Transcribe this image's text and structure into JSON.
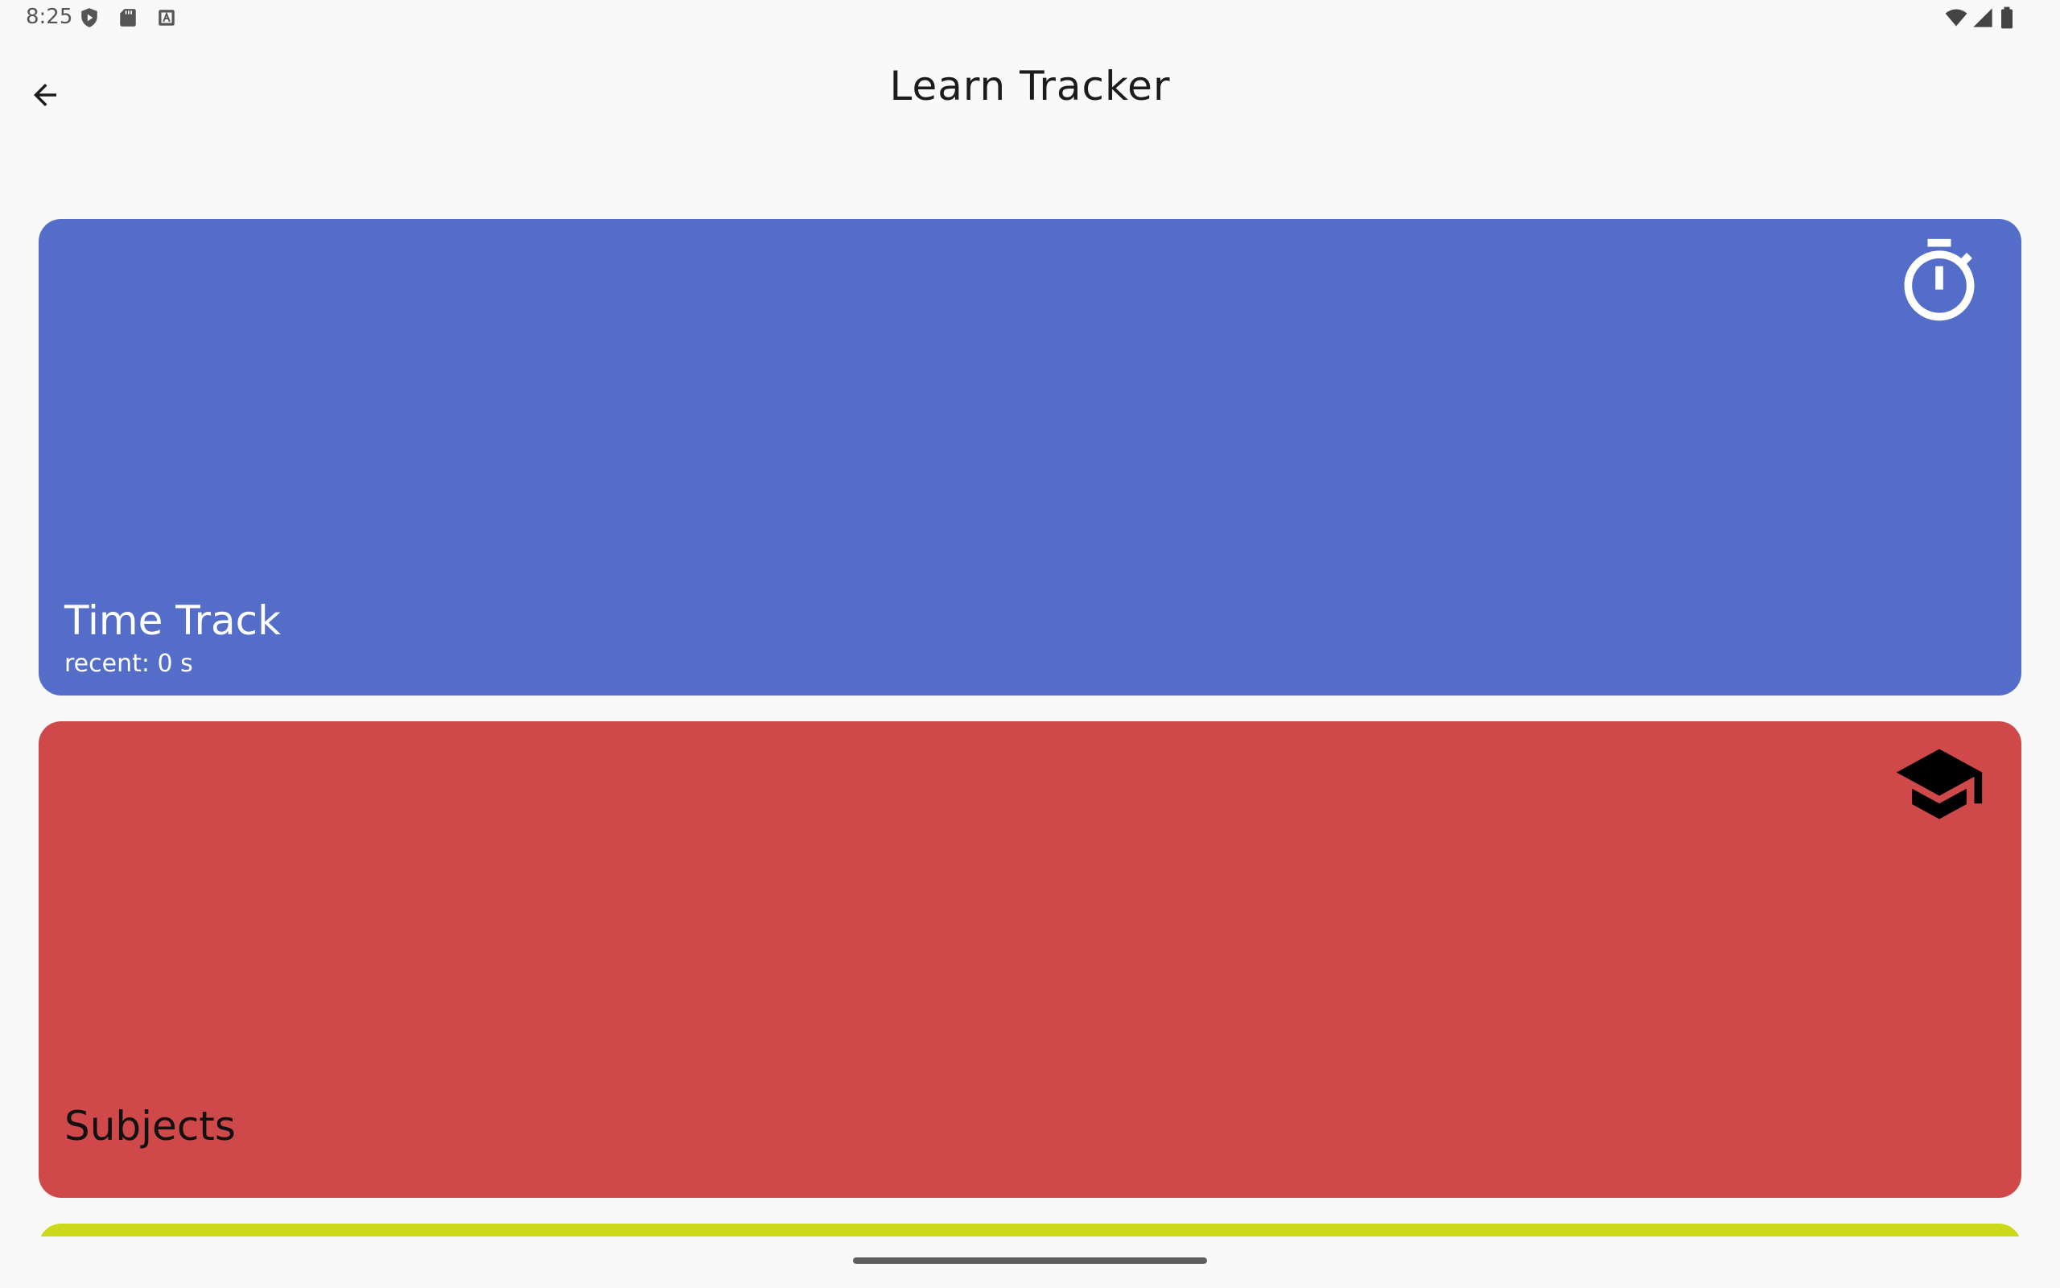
{
  "status_bar": {
    "time": "8:25",
    "left_icons": [
      "play-protect-icon",
      "sd-card-icon",
      "keyboard-a-icon"
    ],
    "right_icons": [
      "wifi-icon",
      "cell-signal-icon",
      "battery-icon"
    ]
  },
  "app_bar": {
    "title": "Learn Tracker",
    "back_icon": "arrow-back-icon"
  },
  "cards": [
    {
      "title": "Time Track",
      "subtitle": "recent: 0 s",
      "icon": "stopwatch-icon",
      "color": "#536dc8",
      "text_color": "#ffffff"
    },
    {
      "title": "Subjects",
      "icon": "graduation-cap-icon",
      "color": "#d0494a",
      "text_color": "#111111"
    },
    {
      "color": "#cbd91a"
    }
  ],
  "colors": {
    "background": "#f9f9f9",
    "title_text": "#1c1c1c",
    "nav_handle": "#5f5f5f"
  }
}
